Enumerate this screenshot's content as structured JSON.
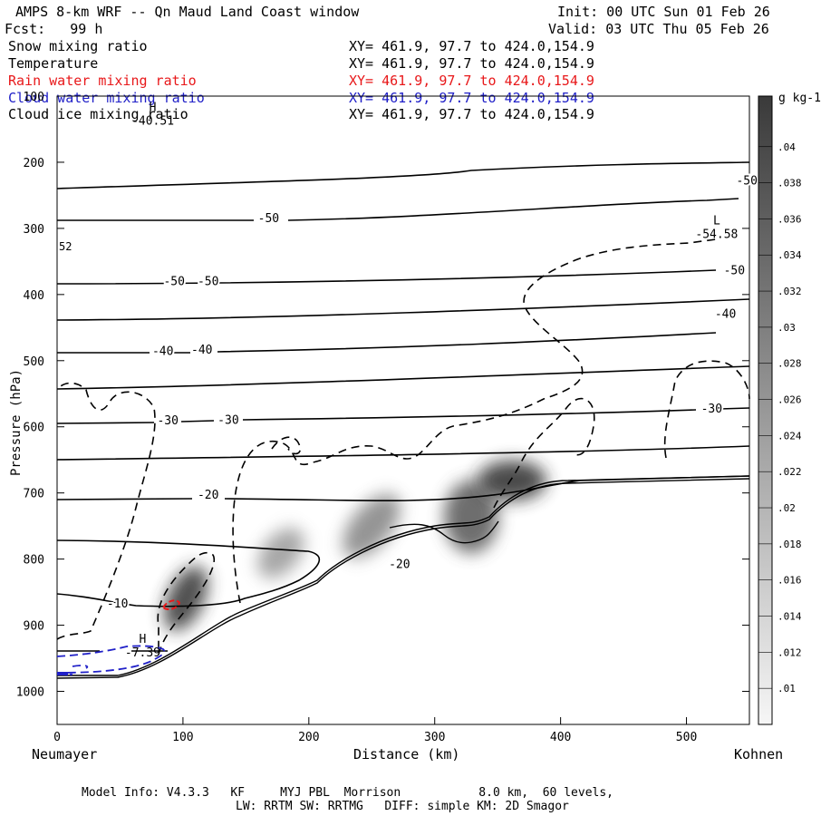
{
  "header": {
    "title": "AMPS 8-km WRF -- Qn Maud Land Coast window",
    "init": "Init: 00 UTC Sun 01 Feb 26",
    "forecast": "Fcst:   99 h",
    "valid": "Valid: 03 UTC Thu 05 Feb 26"
  },
  "fields": [
    {
      "name": "Snow mixing ratio",
      "xy": "XY= 461.9, 97.7 to 424.0,154.9",
      "color": "#000000"
    },
    {
      "name": "Temperature",
      "xy": "XY= 461.9, 97.7 to 424.0,154.9",
      "color": "#000000"
    },
    {
      "name": "Rain water mixing ratio",
      "xy": "XY= 461.9, 97.7 to 424.0,154.9",
      "color": "#e8181a"
    },
    {
      "name": "Cloud water mixing ratio",
      "xy": "XY= 461.9, 97.7 to 424.0,154.9",
      "color": "#2020c8"
    },
    {
      "name": "Cloud ice mixing ratio",
      "xy": "XY= 461.9, 97.7 to 424.0,154.9",
      "color": "#000000"
    }
  ],
  "footer": {
    "line1": "Model Info: V4.3.3   KF     MYJ PBL  Morrison           8.0 km,  60 levels,",
    "line2": "LW: RRTM SW: RRTMG   DIFF: simple KM: 2D Smagor"
  },
  "chart_data": {
    "type": "contour",
    "xlabel": "Distance (km)",
    "ylabel": "Pressure (hPa)",
    "xlim": [
      0,
      550
    ],
    "ylim": [
      1050,
      100
    ],
    "x_ticks": [
      0,
      100,
      200,
      300,
      400,
      500
    ],
    "y_ticks": [
      100,
      200,
      300,
      400,
      500,
      600,
      700,
      800,
      900,
      1000
    ],
    "x_end_labels": {
      "left": "Neumayer",
      "right": "Kohnen"
    },
    "colorbar": {
      "unit_label": "g kg-1",
      "labels": [
        ".01",
        ".012",
        ".014",
        ".016",
        ".018",
        ".02",
        ".022",
        ".024",
        ".026",
        ".028",
        ".03",
        ".032",
        ".034",
        ".036",
        ".038",
        ".04"
      ]
    },
    "temperature_labels": [
      {
        "text": "-50",
        "x": 168,
        "p": 285
      },
      {
        "text": "-50",
        "x": 548,
        "p": 228
      },
      {
        "text": "-50",
        "x": 93,
        "p": 380
      },
      {
        "text": "-50",
        "x": 120,
        "p": 380
      },
      {
        "text": "-50",
        "x": 538,
        "p": 364
      },
      {
        "text": "-40",
        "x": 84,
        "p": 486
      },
      {
        "text": "-40",
        "x": 115,
        "p": 484
      },
      {
        "text": "-40",
        "x": 531,
        "p": 430
      },
      {
        "text": "-30",
        "x": 88,
        "p": 591
      },
      {
        "text": "-30",
        "x": 136,
        "p": 590
      },
      {
        "text": "-30",
        "x": 520,
        "p": 573
      },
      {
        "text": "-20",
        "x": 120,
        "p": 703
      },
      {
        "text": "-20",
        "x": 272,
        "p": 808
      },
      {
        "text": "-10",
        "x": 48,
        "p": 868
      }
    ],
    "extrema": [
      {
        "type": "H",
        "value": "-40.51",
        "x": 76,
        "p": 131
      },
      {
        "type": "L",
        "value": "-54.58",
        "x": 524,
        "p": 302
      },
      {
        "type": "H",
        "value": "-7.39",
        "x": 68,
        "p": 935
      }
    ],
    "partial_left_label": "52"
  }
}
